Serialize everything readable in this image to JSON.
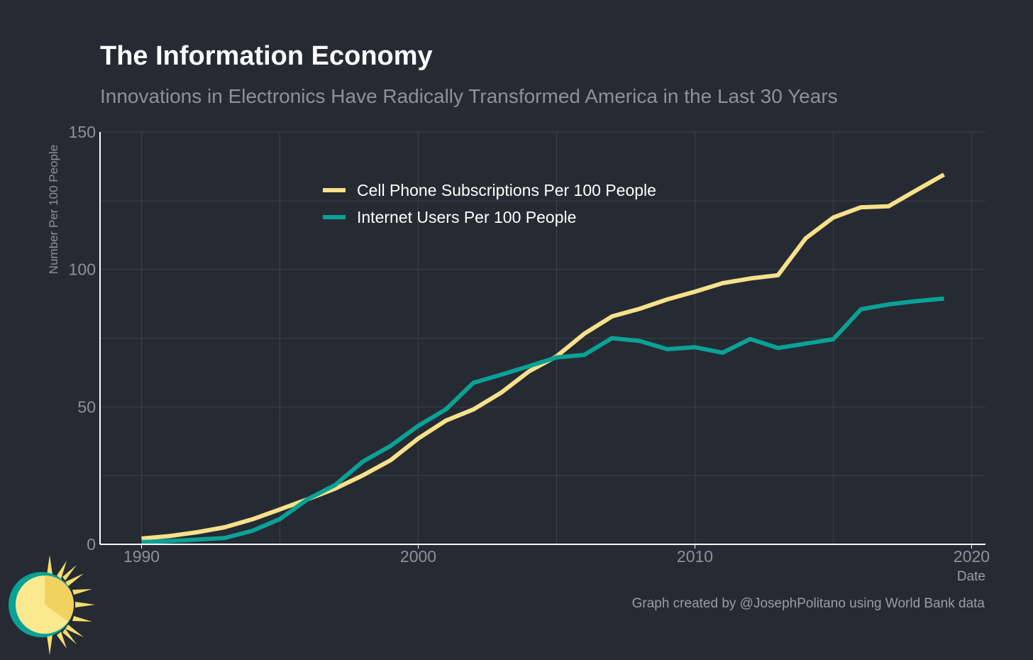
{
  "title": "The Information Economy",
  "subtitle": "Innovations in Electronics Have Radically Transformed America in the Last 30 Years",
  "caption": "Graph created by @JosephPolitano using World Bank data",
  "colors": {
    "background": "#262a33",
    "grid": "#3b3f48",
    "axis": "#ffffff",
    "tick_text": "#8e9199",
    "cell": "#f7e18a",
    "internet": "#0aa196",
    "logo_sun": "#f5dd6e",
    "logo_ring": "#0aa196"
  },
  "chart_data": {
    "type": "line",
    "title": "The Information Economy",
    "subtitle": "Innovations in Electronics Have Radically Transformed America in the Last 30 Years",
    "xlabel": "Date",
    "ylabel": "Number Per 100 People",
    "xlim": [
      1988.5,
      2020.5
    ],
    "ylim": [
      0,
      150
    ],
    "x_ticks": [
      1990,
      2000,
      2010,
      2020
    ],
    "y_ticks": [
      0,
      50,
      100,
      150
    ],
    "grid": true,
    "legend_position": "top-center",
    "x": [
      1990,
      1991,
      1992,
      1993,
      1994,
      1995,
      1996,
      1997,
      1998,
      1999,
      2000,
      2001,
      2002,
      2003,
      2004,
      2005,
      2006,
      2007,
      2008,
      2009,
      2010,
      2011,
      2012,
      2013,
      2014,
      2015,
      2016,
      2017,
      2018,
      2019
    ],
    "series": [
      {
        "name": "Cell Phone Subscriptions Per 100 People",
        "color": "#f7e18a",
        "values": [
          2.1,
          3.0,
          4.4,
          6.2,
          9.1,
          12.7,
          16.4,
          20.3,
          25.1,
          30.6,
          38.5,
          45.0,
          49.1,
          55.2,
          62.9,
          68.4,
          76.6,
          82.9,
          85.7,
          89.1,
          91.9,
          95.0,
          96.7,
          97.9,
          111.3,
          118.9,
          122.6,
          123.0,
          128.8,
          134.5
        ]
      },
      {
        "name": "Internet Users Per 100 People",
        "color": "#0aa196",
        "values": [
          0.8,
          1.2,
          1.7,
          2.3,
          4.9,
          9.2,
          16.4,
          21.6,
          30.1,
          35.8,
          43.1,
          49.1,
          58.8,
          61.7,
          64.8,
          68.0,
          68.9,
          75.0,
          74.0,
          71.0,
          71.7,
          69.7,
          74.7,
          71.4,
          73.0,
          74.6,
          85.5,
          87.3,
          88.5,
          89.4
        ]
      }
    ]
  }
}
